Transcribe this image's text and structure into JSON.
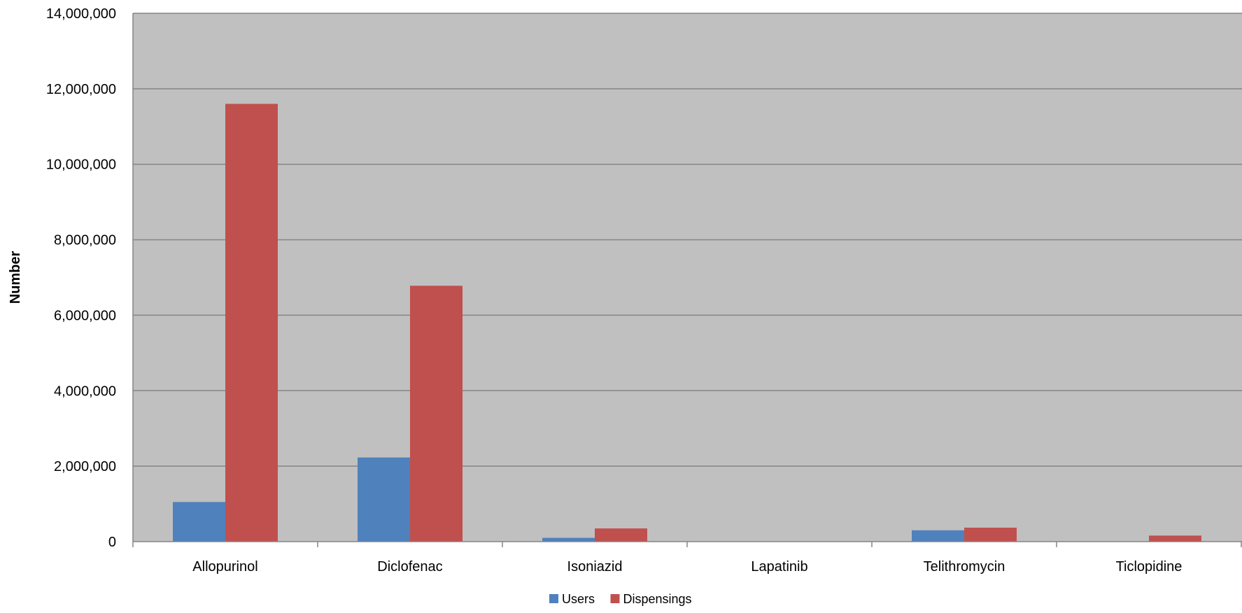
{
  "chart_data": {
    "type": "bar",
    "title": "",
    "xlabel": "",
    "ylabel": "Number",
    "ylim": [
      0,
      14000000
    ],
    "yticks": [
      0,
      2000000,
      4000000,
      6000000,
      8000000,
      10000000,
      12000000,
      14000000
    ],
    "ytick_labels": [
      "0",
      "2,000,000",
      "4,000,000",
      "6,000,000",
      "8,000,000",
      "10,000,000",
      "12,000,000",
      "14,000,000"
    ],
    "categories": [
      "Allopurinol",
      "Diclofenac",
      "Isoniazid",
      "Lapatinib",
      "Telithromycin",
      "Ticlopidine"
    ],
    "series": [
      {
        "name": "Users",
        "color": "#4F81BD",
        "values": [
          1050000,
          2230000,
          100000,
          0,
          300000,
          0
        ]
      },
      {
        "name": "Dispensings",
        "color": "#C0504D",
        "values": [
          11600000,
          6780000,
          350000,
          0,
          370000,
          160000
        ]
      }
    ],
    "grid": true,
    "legend_position": "bottom"
  },
  "colors": {
    "plot_background": "#C0C0C0",
    "gridline": "#868686",
    "axis": "#868686"
  }
}
